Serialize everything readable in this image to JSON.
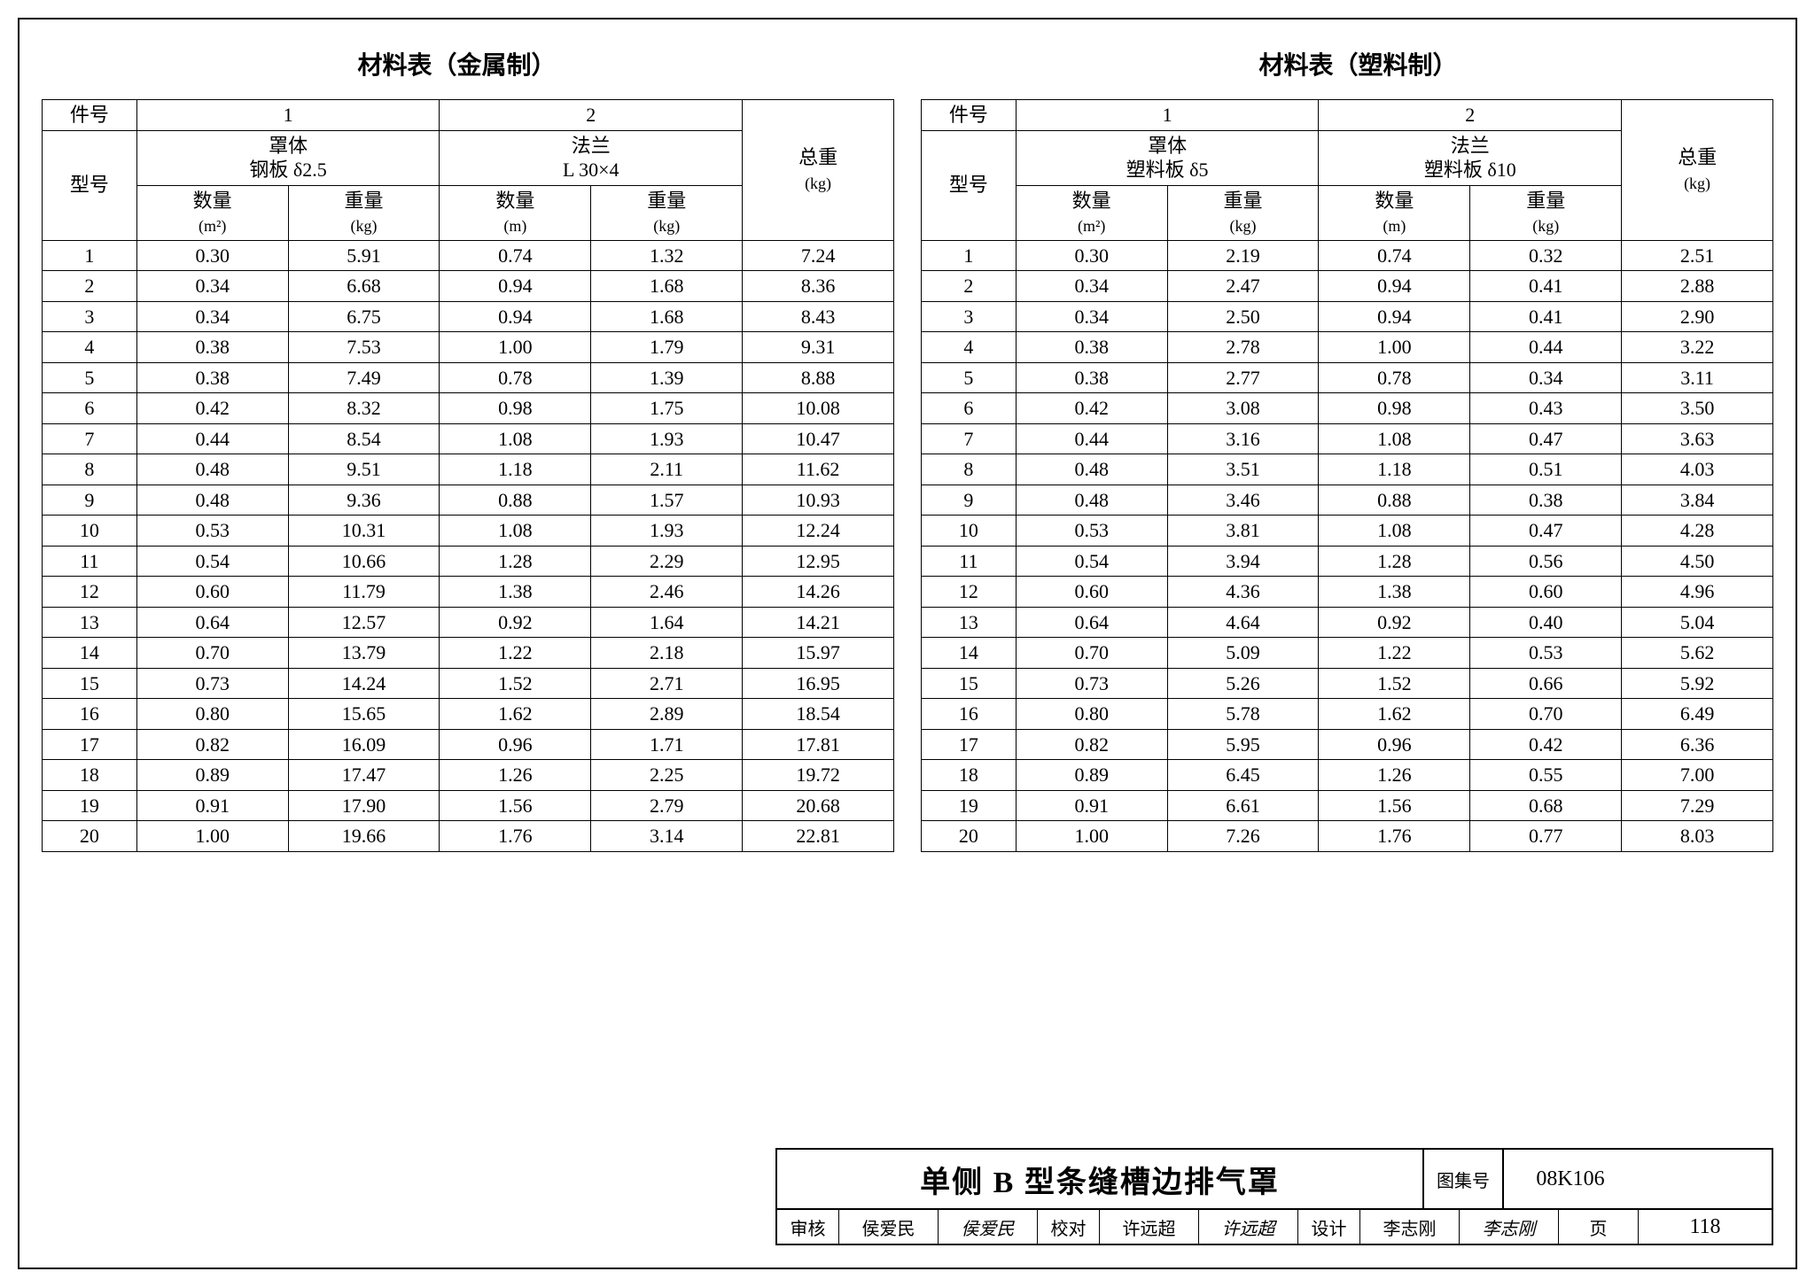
{
  "titles": {
    "left": "材料表（金属制）",
    "right": "材料表（塑料制）"
  },
  "header_common": {
    "part_no": "件号",
    "model_no": "型号",
    "col1": "1",
    "col2": "2",
    "body": "罩体",
    "flange": "法兰",
    "qty": "数量",
    "weight": "重量",
    "total": "总重",
    "kg": "(kg)",
    "m2": "(m²)",
    "m": "(m)"
  },
  "metal": {
    "body_spec": "钢板 δ2.5",
    "flange_spec": "L 30×4",
    "rows": [
      [
        "1",
        "0.30",
        "5.91",
        "0.74",
        "1.32",
        "7.24"
      ],
      [
        "2",
        "0.34",
        "6.68",
        "0.94",
        "1.68",
        "8.36"
      ],
      [
        "3",
        "0.34",
        "6.75",
        "0.94",
        "1.68",
        "8.43"
      ],
      [
        "4",
        "0.38",
        "7.53",
        "1.00",
        "1.79",
        "9.31"
      ],
      [
        "5",
        "0.38",
        "7.49",
        "0.78",
        "1.39",
        "8.88"
      ],
      [
        "6",
        "0.42",
        "8.32",
        "0.98",
        "1.75",
        "10.08"
      ],
      [
        "7",
        "0.44",
        "8.54",
        "1.08",
        "1.93",
        "10.47"
      ],
      [
        "8",
        "0.48",
        "9.51",
        "1.18",
        "2.11",
        "11.62"
      ],
      [
        "9",
        "0.48",
        "9.36",
        "0.88",
        "1.57",
        "10.93"
      ],
      [
        "10",
        "0.53",
        "10.31",
        "1.08",
        "1.93",
        "12.24"
      ],
      [
        "11",
        "0.54",
        "10.66",
        "1.28",
        "2.29",
        "12.95"
      ],
      [
        "12",
        "0.60",
        "11.79",
        "1.38",
        "2.46",
        "14.26"
      ],
      [
        "13",
        "0.64",
        "12.57",
        "0.92",
        "1.64",
        "14.21"
      ],
      [
        "14",
        "0.70",
        "13.79",
        "1.22",
        "2.18",
        "15.97"
      ],
      [
        "15",
        "0.73",
        "14.24",
        "1.52",
        "2.71",
        "16.95"
      ],
      [
        "16",
        "0.80",
        "15.65",
        "1.62",
        "2.89",
        "18.54"
      ],
      [
        "17",
        "0.82",
        "16.09",
        "0.96",
        "1.71",
        "17.81"
      ],
      [
        "18",
        "0.89",
        "17.47",
        "1.26",
        "2.25",
        "19.72"
      ],
      [
        "19",
        "0.91",
        "17.90",
        "1.56",
        "2.79",
        "20.68"
      ],
      [
        "20",
        "1.00",
        "19.66",
        "1.76",
        "3.14",
        "22.81"
      ]
    ]
  },
  "plastic": {
    "body_spec": "塑料板 δ5",
    "flange_spec": "塑料板 δ10",
    "rows": [
      [
        "1",
        "0.30",
        "2.19",
        "0.74",
        "0.32",
        "2.51"
      ],
      [
        "2",
        "0.34",
        "2.47",
        "0.94",
        "0.41",
        "2.88"
      ],
      [
        "3",
        "0.34",
        "2.50",
        "0.94",
        "0.41",
        "2.90"
      ],
      [
        "4",
        "0.38",
        "2.78",
        "1.00",
        "0.44",
        "3.22"
      ],
      [
        "5",
        "0.38",
        "2.77",
        "0.78",
        "0.34",
        "3.11"
      ],
      [
        "6",
        "0.42",
        "3.08",
        "0.98",
        "0.43",
        "3.50"
      ],
      [
        "7",
        "0.44",
        "3.16",
        "1.08",
        "0.47",
        "3.63"
      ],
      [
        "8",
        "0.48",
        "3.51",
        "1.18",
        "0.51",
        "4.03"
      ],
      [
        "9",
        "0.48",
        "3.46",
        "0.88",
        "0.38",
        "3.84"
      ],
      [
        "10",
        "0.53",
        "3.81",
        "1.08",
        "0.47",
        "4.28"
      ],
      [
        "11",
        "0.54",
        "3.94",
        "1.28",
        "0.56",
        "4.50"
      ],
      [
        "12",
        "0.60",
        "4.36",
        "1.38",
        "0.60",
        "4.96"
      ],
      [
        "13",
        "0.64",
        "4.64",
        "0.92",
        "0.40",
        "5.04"
      ],
      [
        "14",
        "0.70",
        "5.09",
        "1.22",
        "0.53",
        "5.62"
      ],
      [
        "15",
        "0.73",
        "5.26",
        "1.52",
        "0.66",
        "5.92"
      ],
      [
        "16",
        "0.80",
        "5.78",
        "1.62",
        "0.70",
        "6.49"
      ],
      [
        "17",
        "0.82",
        "5.95",
        "0.96",
        "0.42",
        "6.36"
      ],
      [
        "18",
        "0.89",
        "6.45",
        "1.26",
        "0.55",
        "7.00"
      ],
      [
        "19",
        "0.91",
        "6.61",
        "1.56",
        "0.68",
        "7.29"
      ],
      [
        "20",
        "1.00",
        "7.26",
        "1.76",
        "0.77",
        "8.03"
      ]
    ]
  },
  "titleblock": {
    "main": "单侧 B 型条缝槽边排气罩",
    "set_label": "图集号",
    "set_value": "08K106",
    "review_l": "审核",
    "review_v": "侯爱民",
    "review_sig": "侯爱民",
    "check_l": "校对",
    "check_v": "许远超",
    "check_sig": "许远超",
    "design_l": "设计",
    "design_v": "李志刚",
    "design_sig": "李志刚",
    "page_l": "页",
    "page_v": "118"
  },
  "style": {
    "border_color": "#000000",
    "bg_color": "#ffffff",
    "text_color": "#000000",
    "title_fontsize": 28,
    "cell_fontsize": 22,
    "main_title_fontsize": 34
  }
}
